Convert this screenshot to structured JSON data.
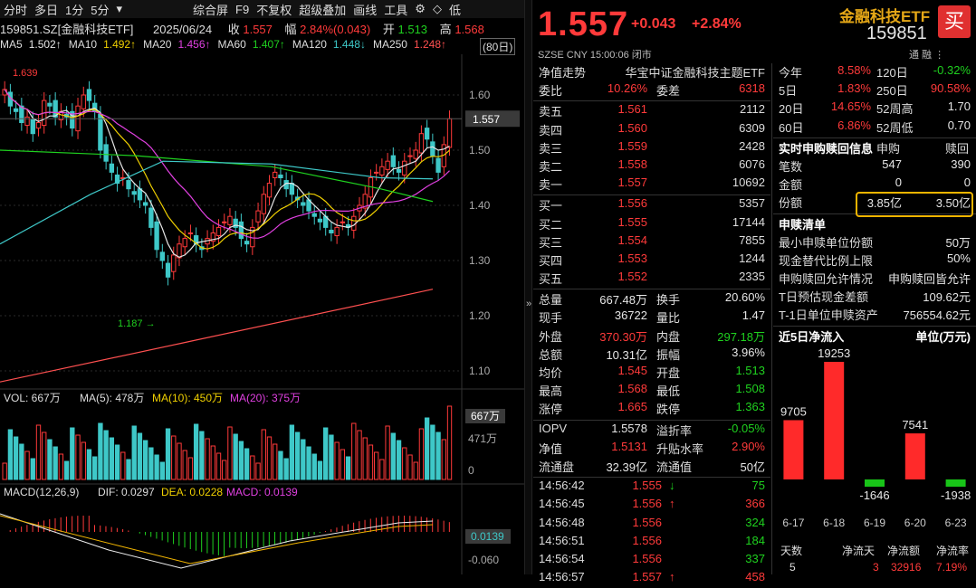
{
  "toolbar": {
    "items": [
      "分时",
      "多日",
      "1分",
      "5分",
      "▾",
      "综合屏",
      "F9",
      "不复权",
      "超级叠加",
      "画线",
      "工具",
      "⚙",
      "◇",
      "低"
    ]
  },
  "stock_line": {
    "code_name": "159851.SZ[金融科技ETF]",
    "date": "2025/06/24",
    "close_label": "收",
    "close": "1.557",
    "range_label": "幅",
    "range": "2.84%(0.043)",
    "open_label": "开",
    "open": "1.513",
    "high_label": "高",
    "high": "1.568"
  },
  "ma_line": {
    "items": [
      {
        "label": "MA5",
        "value": "1.502↑",
        "color": "#e6e6e6"
      },
      {
        "label": "MA10",
        "value": "1.492↑",
        "color": "#f0d000"
      },
      {
        "label": "MA20",
        "value": "1.456↑",
        "color": "#e040e0"
      },
      {
        "label": "MA60",
        "value": "1.407↑",
        "color": "#1fd11f"
      },
      {
        "label": "MA120",
        "value": "1.448↓",
        "color": "#3ec8c8"
      },
      {
        "label": "MA250",
        "value": "1.248↑",
        "color": "#ff5050"
      }
    ],
    "period": "(80日)"
  },
  "kline": {
    "y_ticks": [
      "1.60",
      "1.50",
      "1.40",
      "1.30",
      "1.20",
      "1.10"
    ],
    "current_tag": "1.557",
    "high_mark": "1.639",
    "low_mark": "1.187"
  },
  "volume": {
    "header_vol": "VOL: 667万",
    "header_ma5": "MA(5): 478万",
    "header_ma10": "MA(10): 450万",
    "header_ma20": "MA(20): 375万",
    "tag": "667万",
    "tick_mid": "471万",
    "tick_zero": "0"
  },
  "macd": {
    "header_title": "MACD(12,26,9)",
    "header_dif": "DIF: 0.0297",
    "header_dea": "DEA: 0.0228",
    "header_macd": "MACD: 0.0139",
    "tag": "0.0139",
    "tick_low": "-0.060"
  },
  "quote": {
    "price": "1.557",
    "change": "+0.043",
    "change_pct": "+2.84%",
    "sub": "SZSE  CNY  15:00:06  闭市",
    "name": "金融科技ETF",
    "code": "159851",
    "buy": "买",
    "icons": "通  融  ⋮"
  },
  "book": {
    "nav_label": "净值走势",
    "nav_index": "华宝中证金融科技主题ETF",
    "weibi_label": "委比",
    "weibi": "10.26%",
    "weicha_label": "委差",
    "weicha": "6318",
    "asks": [
      {
        "label": "卖五",
        "price": "1.561",
        "vol": "2112"
      },
      {
        "label": "卖四",
        "price": "1.560",
        "vol": "6309"
      },
      {
        "label": "卖三",
        "price": "1.559",
        "vol": "2428"
      },
      {
        "label": "卖二",
        "price": "1.558",
        "vol": "6076"
      },
      {
        "label": "卖一",
        "price": "1.557",
        "vol": "10692"
      }
    ],
    "bids": [
      {
        "label": "买一",
        "price": "1.556",
        "vol": "5357"
      },
      {
        "label": "买二",
        "price": "1.555",
        "vol": "17144"
      },
      {
        "label": "买三",
        "price": "1.554",
        "vol": "7855"
      },
      {
        "label": "买四",
        "price": "1.553",
        "vol": "1244"
      },
      {
        "label": "买五",
        "price": "1.552",
        "vol": "2335"
      }
    ],
    "stats": [
      {
        "l1": "总量",
        "v1": "667.48万",
        "c1": "white",
        "l2": "换手",
        "v2": "20.60%",
        "c2": "white"
      },
      {
        "l1": "现手",
        "v1": "36722",
        "c1": "white",
        "l2": "量比",
        "v2": "1.47",
        "c2": "white"
      },
      {
        "l1": "外盘",
        "v1": "370.30万",
        "c1": "red",
        "l2": "内盘",
        "v2": "297.18万",
        "c2": "green"
      },
      {
        "l1": "总额",
        "v1": "10.31亿",
        "c1": "white",
        "l2": "振幅",
        "v2": "3.96%",
        "c2": "white"
      },
      {
        "l1": "均价",
        "v1": "1.545",
        "c1": "red",
        "l2": "开盘",
        "v2": "1.513",
        "c2": "green"
      },
      {
        "l1": "最高",
        "v1": "1.568",
        "c1": "red",
        "l2": "最低",
        "v2": "1.508",
        "c2": "green"
      },
      {
        "l1": "涨停",
        "v1": "1.665",
        "c1": "red",
        "l2": "跌停",
        "v2": "1.363",
        "c2": "green"
      }
    ],
    "iopv": [
      {
        "l1": "IOPV",
        "v1": "1.5578",
        "c1": "white",
        "l2": "溢折率",
        "v2": "-0.05%",
        "c2": "green"
      },
      {
        "l1": "净值",
        "v1": "1.5131",
        "c1": "red",
        "l2": "升贴水率",
        "v2": "2.90%",
        "c2": "red"
      },
      {
        "l1": "流通盘",
        "v1": "32.39亿",
        "c1": "white",
        "l2": "流通值",
        "v2": "50亿",
        "c2": "white"
      }
    ],
    "ticks": [
      {
        "time": "14:56:42",
        "price": "1.555",
        "arrow": "↓",
        "acol": "green",
        "vol": "75",
        "vcol": "green"
      },
      {
        "time": "14:56:45",
        "price": "1.556",
        "arrow": "↑",
        "acol": "red",
        "vol": "366",
        "vcol": "red"
      },
      {
        "time": "14:56:48",
        "price": "1.556",
        "arrow": "",
        "acol": "red",
        "vol": "324",
        "vcol": "green"
      },
      {
        "time": "14:56:51",
        "price": "1.556",
        "arrow": "",
        "acol": "red",
        "vol": "184",
        "vcol": "green"
      },
      {
        "time": "14:56:54",
        "price": "1.556",
        "arrow": "",
        "acol": "red",
        "vol": "337",
        "vcol": "green"
      },
      {
        "time": "14:56:57",
        "price": "1.557",
        "arrow": "↑",
        "acol": "red",
        "vol": "458",
        "vcol": "red"
      }
    ]
  },
  "right": {
    "perf": [
      {
        "l1": "今年",
        "v1": "8.58%",
        "c1": "red",
        "l2": "120日",
        "v2": "-0.32%",
        "c2": "green"
      },
      {
        "l1": "5日",
        "v1": "1.83%",
        "c1": "red",
        "l2": "250日",
        "v2": "90.58%",
        "c2": "red"
      },
      {
        "l1": "20日",
        "v1": "14.65%",
        "c1": "red",
        "l2": "52周高",
        "v2": "1.70",
        "c2": "white"
      },
      {
        "l1": "60日",
        "v1": "6.86%",
        "c1": "red",
        "l2": "52周低",
        "v2": "0.70",
        "c2": "white"
      }
    ],
    "sg_header": {
      "title": "实时申购赎回信息",
      "col1": "申购",
      "col2": "赎回"
    },
    "sg_rows": [
      {
        "label": "笔数",
        "v1": "547",
        "v2": "390"
      },
      {
        "label": "金额",
        "v1": "0",
        "v2": "0"
      },
      {
        "label": "份额",
        "v1": "3.85亿",
        "v2": "3.50亿"
      }
    ],
    "list_title": "申赎清单",
    "list_rows": [
      {
        "label": "最小申赎单位份额",
        "value": "50万"
      },
      {
        "label": "现金替代比例上限",
        "value": "50%"
      },
      {
        "label": "申购赎回允许情况",
        "value": "申购赎回皆允许"
      },
      {
        "label": "T日预估现金差额",
        "value": "109.62元"
      },
      {
        "label": "T-1日单位申赎资产",
        "value": "756554.62元"
      }
    ],
    "flow_title": "近5日净流入",
    "flow_unit": "单位(万元)",
    "flow_table_head": [
      "天数",
      "净流天",
      "净流额",
      "净流率"
    ],
    "flow_table_row": [
      "5",
      "3",
      "32916",
      "7.19%"
    ]
  },
  "chart_data": {
    "type": "bar",
    "title": "近5日净流入",
    "ylabel": "单位(万元)",
    "categories": [
      "6-17",
      "6-18",
      "6-19",
      "6-20",
      "6-23"
    ],
    "values": [
      9705,
      19253,
      -1646,
      7541,
      -1938
    ],
    "value_labels": [
      "9705",
      "19253",
      "-1646",
      "7541",
      "-1938"
    ]
  }
}
